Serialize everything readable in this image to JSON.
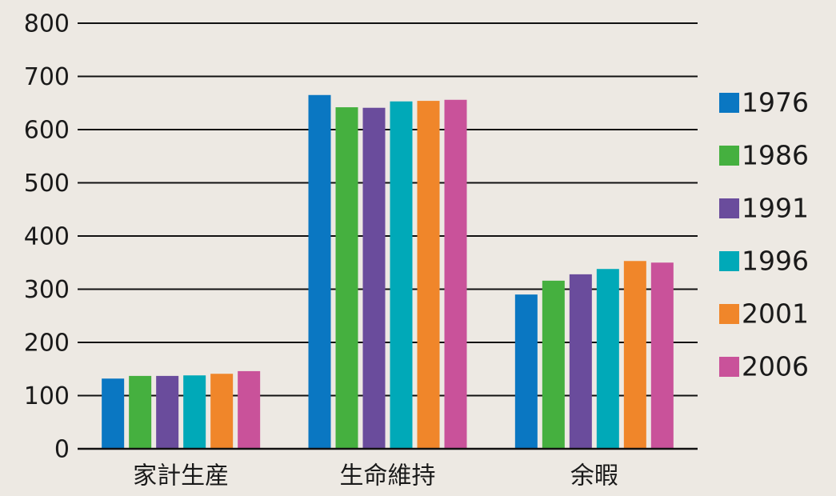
{
  "chart_data": {
    "type": "bar",
    "categories": [
      "家計生産",
      "生命維持",
      "余暇"
    ],
    "series": [
      {
        "name": "1976",
        "color": "#0a77c2",
        "values": [
          132,
          665,
          290
        ]
      },
      {
        "name": "1986",
        "color": "#45b03f",
        "values": [
          137,
          642,
          316
        ]
      },
      {
        "name": "1991",
        "color": "#6a4c9c",
        "values": [
          137,
          641,
          328
        ]
      },
      {
        "name": "1996",
        "color": "#00a9b8",
        "values": [
          138,
          653,
          338
        ]
      },
      {
        "name": "2001",
        "color": "#f0862a",
        "values": [
          141,
          654,
          353
        ]
      },
      {
        "name": "2006",
        "color": "#c9529a",
        "values": [
          146,
          656,
          350
        ]
      }
    ],
    "ylim": [
      0,
      800
    ],
    "yticks": [
      0,
      100,
      200,
      300,
      400,
      500,
      600,
      700,
      800
    ],
    "grid": true,
    "legend": "right"
  }
}
